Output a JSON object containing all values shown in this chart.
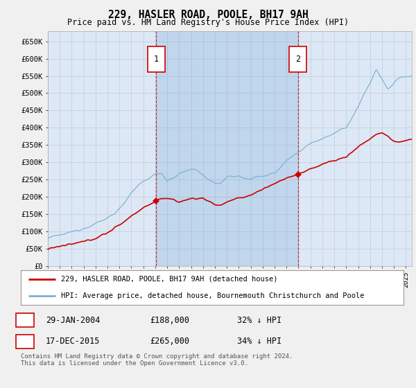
{
  "title": "229, HASLER ROAD, POOLE, BH17 9AH",
  "subtitle": "Price paid vs. HM Land Registry's House Price Index (HPI)",
  "fig_bg_color": "#f0f0f0",
  "plot_bg_color": "#dce8f5",
  "plot_bg_shade": "#ccdff0",
  "grid_color": "#c8d0dc",
  "ylim": [
    0,
    680000
  ],
  "yticks": [
    0,
    50000,
    100000,
    150000,
    200000,
    250000,
    300000,
    350000,
    400000,
    450000,
    500000,
    550000,
    600000,
    650000
  ],
  "ytick_labels": [
    "£0",
    "£50K",
    "£100K",
    "£150K",
    "£200K",
    "£250K",
    "£300K",
    "£350K",
    "£400K",
    "£450K",
    "£500K",
    "£550K",
    "£600K",
    "£650K"
  ],
  "xlim_start": 1995.0,
  "xlim_end": 2025.5,
  "sale1_year": 2004.08,
  "sale1_price": 188000,
  "sale2_year": 2015.96,
  "sale2_price": 265000,
  "legend_label_red": "229, HASLER ROAD, POOLE, BH17 9AH (detached house)",
  "legend_label_blue": "HPI: Average price, detached house, Bournemouth Christchurch and Poole",
  "table_row1": [
    "1",
    "29-JAN-2004",
    "£188,000",
    "32% ↓ HPI"
  ],
  "table_row2": [
    "2",
    "17-DEC-2015",
    "£265,000",
    "34% ↓ HPI"
  ],
  "footer": "Contains HM Land Registry data © Crown copyright and database right 2024.\nThis data is licensed under the Open Government Licence v3.0.",
  "red_line_color": "#cc0000",
  "blue_line_color": "#7aafd4",
  "vline_color": "#cc0000",
  "box_color": "#cc0000"
}
